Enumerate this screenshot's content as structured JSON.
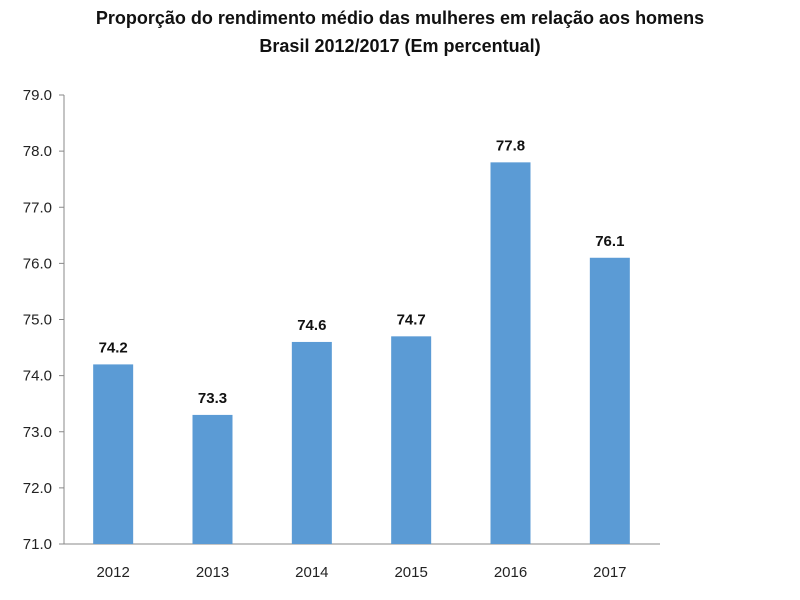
{
  "chart_data": {
    "type": "bar",
    "title": "Proporção do rendimento médio das mulheres em relação aos homens",
    "subtitle": "Brasil 2012/2017   (Em percentual)",
    "categories": [
      "2012",
      "2013",
      "2014",
      "2015",
      "2016",
      "2017"
    ],
    "values": [
      74.2,
      73.3,
      74.6,
      74.7,
      77.8,
      76.1
    ],
    "data_labels": [
      "74.2",
      "73.3",
      "74.6",
      "74.7",
      "77.8",
      "76.1"
    ],
    "xlabel": "",
    "ylabel": "",
    "ylim": [
      71.0,
      79.0
    ],
    "yticks": [
      "71.0",
      "72.0",
      "73.0",
      "74.0",
      "75.0",
      "76.0",
      "77.0",
      "78.0",
      "79.0"
    ],
    "grid": false,
    "bar_color": "#5B9BD5"
  }
}
